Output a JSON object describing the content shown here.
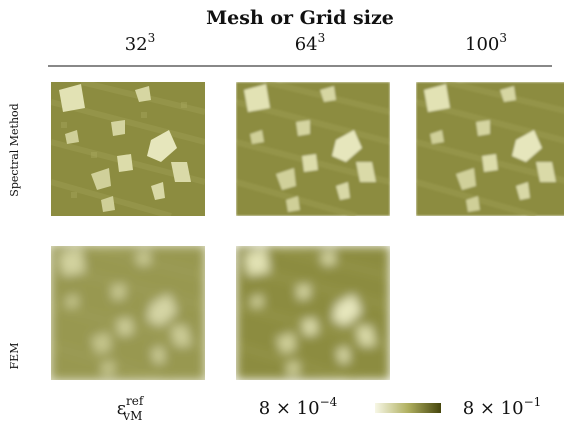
{
  "header": {
    "title": "Mesh or Grid size"
  },
  "columns": [
    {
      "base": "32",
      "exponent": "3"
    },
    {
      "base": "64",
      "exponent": "3"
    },
    {
      "base": "100",
      "exponent": "3"
    }
  ],
  "rows": [
    "Spectral Method",
    "FEM"
  ],
  "colorbar": {
    "symbol": {
      "base": "ε",
      "sup": "ref",
      "sub": "vM"
    },
    "min": {
      "mantissa": "8 × 10",
      "exponent": "−4"
    },
    "max": {
      "mantissa": "8 × 10",
      "exponent": "−1"
    }
  }
}
